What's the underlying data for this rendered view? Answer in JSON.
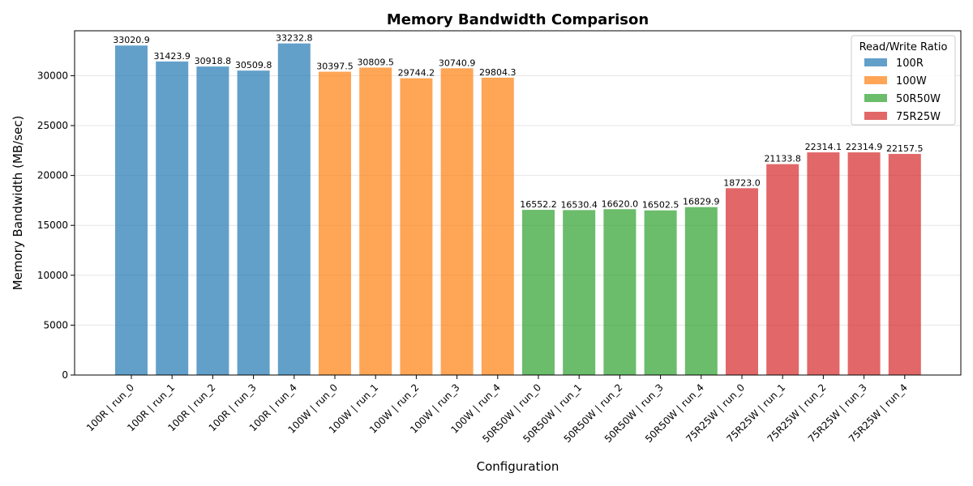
{
  "chart_data": {
    "type": "bar",
    "title": "Memory Bandwidth Comparison",
    "xlabel": "Configuration",
    "ylabel": "Memory Bandwidth (MB/sec)",
    "ylim": [
      0,
      34500
    ],
    "yticks": [
      0,
      5000,
      10000,
      15000,
      20000,
      25000,
      30000
    ],
    "grid": "y",
    "legend": {
      "title": "Read/Write Ratio",
      "placement": "top-right",
      "entries": [
        {
          "name": "100R",
          "color": "#1f77b4"
        },
        {
          "name": "100W",
          "color": "#ff7f0e"
        },
        {
          "name": "50R50W",
          "color": "#2ca02c"
        },
        {
          "name": "75R25W",
          "color": "#d62728"
        }
      ]
    },
    "categories": [
      "100R | run_0",
      "100R | run_1",
      "100R | run_2",
      "100R | run_3",
      "100R | run_4",
      "100W | run_0",
      "100W | run_1",
      "100W | run_2",
      "100W | run_3",
      "100W | run_4",
      "50R50W | run_0",
      "50R50W | run_1",
      "50R50W | run_2",
      "50R50W | run_3",
      "50R50W | run_4",
      "75R25W | run_0",
      "75R25W | run_1",
      "75R25W | run_2",
      "75R25W | run_3",
      "75R25W | run_4"
    ],
    "values": [
      33020.9,
      31423.9,
      30918.8,
      30509.8,
      33232.8,
      30397.5,
      30809.5,
      29744.2,
      30740.9,
      29804.3,
      16552.2,
      16530.4,
      16620.0,
      16502.5,
      16829.9,
      18723.0,
      21133.8,
      22314.1,
      22314.9,
      22157.5
    ],
    "value_labels": [
      "33020.9",
      "31423.9",
      "30918.8",
      "30509.8",
      "33232.8",
      "30397.5",
      "30809.5",
      "29744.2",
      "30740.9",
      "29804.3",
      "16552.2",
      "16530.4",
      "16620.0",
      "16502.5",
      "16829.9",
      "18723.0",
      "21133.8",
      "22314.1",
      "22314.9",
      "22157.5"
    ],
    "groups": [
      "100R",
      "100R",
      "100R",
      "100R",
      "100R",
      "100W",
      "100W",
      "100W",
      "100W",
      "100W",
      "50R50W",
      "50R50W",
      "50R50W",
      "50R50W",
      "50R50W",
      "75R25W",
      "75R25W",
      "75R25W",
      "75R25W",
      "75R25W"
    ]
  }
}
